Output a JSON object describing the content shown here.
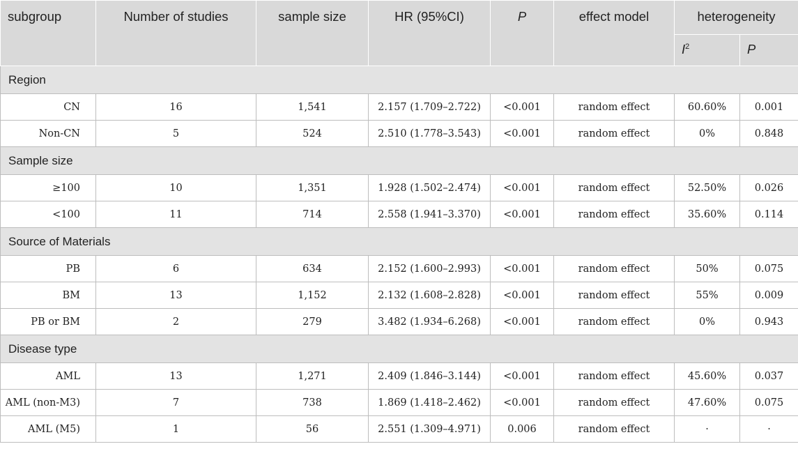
{
  "header": {
    "subgroup": "subgroup",
    "studies": "Number of studies",
    "sample_size": "sample size",
    "hr": "HR (95%CI)",
    "p": "P",
    "effect_model": "effect model",
    "heterogeneity": "heterogeneity",
    "i2_letter": "I",
    "i2_sup": "2",
    "het_p": "P"
  },
  "groups": [
    {
      "label": "Region",
      "rows": [
        {
          "subgroup": "CN",
          "studies": "16",
          "sample_size": "1,541",
          "hr": "2.157 (1.709–2.722)",
          "p": "<0.001",
          "model": "random effect",
          "i2": "60.60%",
          "het_p": "0.001"
        },
        {
          "subgroup": "Non-CN",
          "studies": "5",
          "sample_size": "524",
          "hr": "2.510 (1.778–3.543)",
          "p": "<0.001",
          "model": "random effect",
          "i2": "0%",
          "het_p": "0.848"
        }
      ]
    },
    {
      "label": "Sample size",
      "rows": [
        {
          "subgroup": "≥100",
          "studies": "10",
          "sample_size": "1,351",
          "hr": "1.928 (1.502–2.474)",
          "p": "<0.001",
          "model": "random effect",
          "i2": "52.50%",
          "het_p": "0.026"
        },
        {
          "subgroup": "<100",
          "studies": "11",
          "sample_size": "714",
          "hr": "2.558 (1.941–3.370)",
          "p": "<0.001",
          "model": "random effect",
          "i2": "35.60%",
          "het_p": "0.114"
        }
      ]
    },
    {
      "label": "Source of Materials",
      "rows": [
        {
          "subgroup": "PB",
          "studies": "6",
          "sample_size": "634",
          "hr": "2.152 (1.600–2.993)",
          "p": "<0.001",
          "model": "random effect",
          "i2": "50%",
          "het_p": "0.075"
        },
        {
          "subgroup": "BM",
          "studies": "13",
          "sample_size": "1,152",
          "hr": "2.132 (1.608–2.828)",
          "p": "<0.001",
          "model": "random effect",
          "i2": "55%",
          "het_p": "0.009"
        },
        {
          "subgroup": "PB or BM",
          "studies": "2",
          "sample_size": "279",
          "hr": "3.482 (1.934–6.268)",
          "p": "<0.001",
          "model": "random effect",
          "i2": "0%",
          "het_p": "0.943"
        }
      ]
    },
    {
      "label": "Disease type",
      "rows": [
        {
          "subgroup": "AML",
          "studies": "13",
          "sample_size": "1,271",
          "hr": "2.409 (1.846–3.144)",
          "p": "<0.001",
          "model": "random effect",
          "i2": "45.60%",
          "het_p": "0.037"
        },
        {
          "subgroup": "AML (non-M3)",
          "studies": "7",
          "sample_size": "738",
          "hr": "1.869 (1.418–2.462)",
          "p": "<0.001",
          "model": "random effect",
          "i2": "47.60%",
          "het_p": "0.075"
        },
        {
          "subgroup": "AML (M5)",
          "studies": "1",
          "sample_size": "56",
          "hr": "2.551 (1.309–4.971)",
          "p": "0.006",
          "model": "random effect",
          "i2": "·",
          "het_p": "·"
        }
      ]
    }
  ]
}
